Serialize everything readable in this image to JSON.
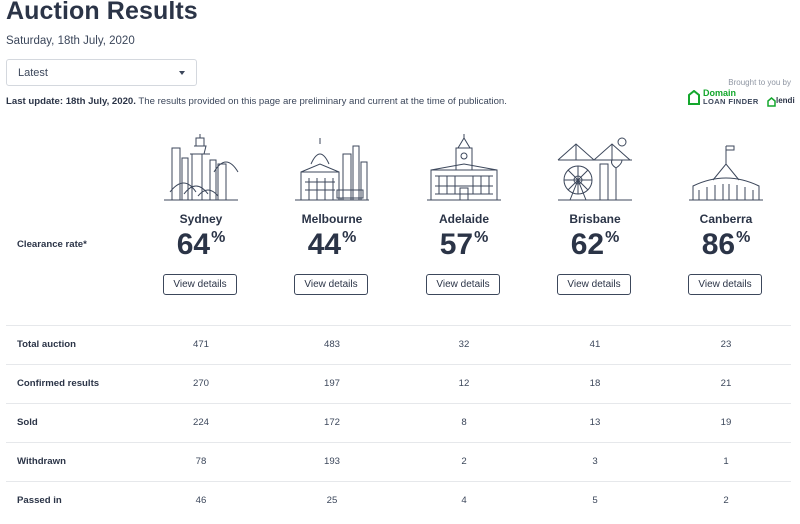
{
  "page": {
    "title": "Auction Results",
    "date": "Saturday, 18th July, 2020"
  },
  "filter": {
    "selected": "Latest"
  },
  "sponsor": {
    "brought_by": "Brought to you by",
    "domain_line1": "Domain",
    "domain_line2": "LOAN FINDER",
    "lendi": "lendi"
  },
  "update": {
    "bold": "Last update: 18th July, 2020.",
    "text": " The results provided on this page are preliminary and current at the time of publication."
  },
  "clearance_label": "Clearance rate*",
  "cities": [
    {
      "name": "Sydney",
      "rate": "64",
      "pct": "%",
      "button": "View details"
    },
    {
      "name": "Melbourne",
      "rate": "44",
      "pct": "%",
      "button": "View details"
    },
    {
      "name": "Adelaide",
      "rate": "57",
      "pct": "%",
      "button": "View details"
    },
    {
      "name": "Brisbane",
      "rate": "62",
      "pct": "%",
      "button": "View details"
    },
    {
      "name": "Canberra",
      "rate": "86",
      "pct": "%",
      "button": "View details"
    }
  ],
  "table": {
    "rows": [
      {
        "label": "Total auction",
        "values": [
          "471",
          "483",
          "32",
          "41",
          "23"
        ]
      },
      {
        "label": "Confirmed results",
        "values": [
          "270",
          "197",
          "12",
          "18",
          "21"
        ]
      },
      {
        "label": "Sold",
        "values": [
          "224",
          "172",
          "8",
          "13",
          "19"
        ]
      },
      {
        "label": "Withdrawn",
        "values": [
          "78",
          "193",
          "2",
          "3",
          "1"
        ]
      },
      {
        "label": "Passed in",
        "values": [
          "46",
          "25",
          "4",
          "5",
          "2"
        ]
      }
    ]
  },
  "colors": {
    "text": "#2b3447",
    "domain_green": "#14a72d",
    "border": "#e6e8eb"
  }
}
